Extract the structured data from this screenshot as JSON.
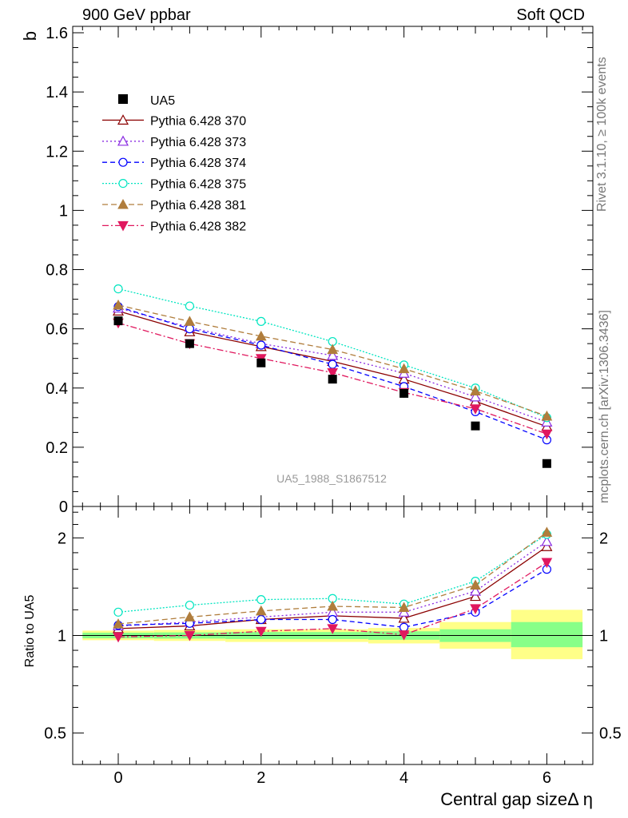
{
  "header": {
    "left": "900 GeV ppbar",
    "right": "Soft QCD"
  },
  "side_text": {
    "rivet": "Rivet 3.1.10, ≥ 100k events",
    "mcplots": "mcplots.cern.ch [arXiv:1306.3436]"
  },
  "watermark": "UA5_1988_S1867512",
  "colors": {
    "ua5": "#000000",
    "p370": "#8b0000",
    "p373": "#8a2be2",
    "p374": "#0000ff",
    "p375": "#00e5c0",
    "p381": "#b07d3c",
    "p382": "#e0185e",
    "band_yellow": "#ffff88",
    "band_green": "#88ff88"
  },
  "chart_data": [
    {
      "type": "line",
      "ylabel": "b",
      "xlabel": "Central gap sizeΔ η",
      "ylim": [
        0,
        1.62
      ],
      "xlim": [
        -0.6,
        6.6
      ],
      "yticks": [
        0,
        0.2,
        0.4,
        0.6,
        0.8,
        1,
        1.2,
        1.4,
        1.6
      ],
      "ytick_labels": [
        "0",
        "0.2",
        "0.4",
        "0.6",
        "0.8",
        "1",
        "1.2",
        "1.4",
        "1.6"
      ],
      "legend_position": "top-left",
      "x": [
        0,
        1,
        2,
        3,
        4,
        5,
        6
      ],
      "data_series": {
        "name": "UA5",
        "values": [
          0.627,
          0.55,
          0.485,
          0.43,
          0.382,
          0.272,
          0.145
        ]
      },
      "series": [
        {
          "name": "Pythia 6.428 370",
          "values": [
            0.66,
            0.59,
            0.54,
            0.49,
            0.43,
            0.355,
            0.27
          ]
        },
        {
          "name": "Pythia 6.428 373",
          "values": [
            0.67,
            0.605,
            0.55,
            0.51,
            0.45,
            0.37,
            0.285
          ]
        },
        {
          "name": "Pythia 6.428 374",
          "values": [
            0.675,
            0.6,
            0.545,
            0.48,
            0.405,
            0.32,
            0.225
          ]
        },
        {
          "name": "Pythia 6.428 375",
          "values": [
            0.735,
            0.677,
            0.625,
            0.557,
            0.478,
            0.4,
            0.3
          ]
        },
        {
          "name": "Pythia 6.428 381",
          "values": [
            0.68,
            0.625,
            0.575,
            0.53,
            0.465,
            0.39,
            0.305
          ]
        },
        {
          "name": "Pythia 6.428 382",
          "values": [
            0.62,
            0.55,
            0.5,
            0.452,
            0.385,
            0.33,
            0.245
          ]
        }
      ]
    },
    {
      "type": "line",
      "ylabel": "Ratio to UA5",
      "xlabel": "Central gap sizeΔ η",
      "scale": "log",
      "ylim": [
        0.4,
        2.5
      ],
      "yticks": [
        0.5,
        1,
        2
      ],
      "ytick_labels": [
        "0.5",
        "1",
        "2"
      ],
      "xticks": [
        0,
        2,
        4,
        6
      ],
      "xtick_labels": [
        "0",
        "2",
        "4",
        "6"
      ],
      "x": [
        0,
        1,
        2,
        3,
        4,
        5,
        6
      ],
      "bands": [
        {
          "x0": -0.5,
          "x1": 0.5,
          "yellow": [
            0.967,
            1.035
          ],
          "green": [
            0.98,
            1.02
          ]
        },
        {
          "x0": 0.5,
          "x1": 1.5,
          "yellow": [
            0.962,
            1.04
          ],
          "green": [
            0.978,
            1.022
          ]
        },
        {
          "x0": 1.5,
          "x1": 2.5,
          "yellow": [
            0.955,
            1.045
          ],
          "green": [
            0.975,
            1.025
          ]
        },
        {
          "x0": 2.5,
          "x1": 3.5,
          "yellow": [
            0.955,
            1.045
          ],
          "green": [
            0.975,
            1.025
          ]
        },
        {
          "x0": 3.5,
          "x1": 4.5,
          "yellow": [
            0.945,
            1.055
          ],
          "green": [
            0.97,
            1.03
          ]
        },
        {
          "x0": 4.5,
          "x1": 5.5,
          "yellow": [
            0.91,
            1.1
          ],
          "green": [
            0.955,
            1.045
          ]
        },
        {
          "x0": 5.5,
          "x1": 6.5,
          "yellow": [
            0.845,
            1.2
          ],
          "green": [
            0.92,
            1.1
          ]
        }
      ],
      "series": [
        {
          "name": "Pythia 6.428 370",
          "values": [
            1.05,
            1.07,
            1.12,
            1.15,
            1.13,
            1.32,
            1.88
          ]
        },
        {
          "name": "Pythia 6.428 373",
          "values": [
            1.07,
            1.1,
            1.14,
            1.18,
            1.18,
            1.37,
            1.95
          ]
        },
        {
          "name": "Pythia 6.428 374",
          "values": [
            1.075,
            1.09,
            1.12,
            1.12,
            1.06,
            1.18,
            1.6
          ]
        },
        {
          "name": "Pythia 6.428 375",
          "values": [
            1.18,
            1.24,
            1.29,
            1.3,
            1.25,
            1.47,
            2.05
          ]
        },
        {
          "name": "Pythia 6.428 381",
          "values": [
            1.085,
            1.14,
            1.19,
            1.23,
            1.22,
            1.43,
            2.08
          ]
        },
        {
          "name": "Pythia 6.428 382",
          "values": [
            0.99,
            1.0,
            1.03,
            1.05,
            1.005,
            1.21,
            1.68
          ]
        }
      ]
    }
  ]
}
